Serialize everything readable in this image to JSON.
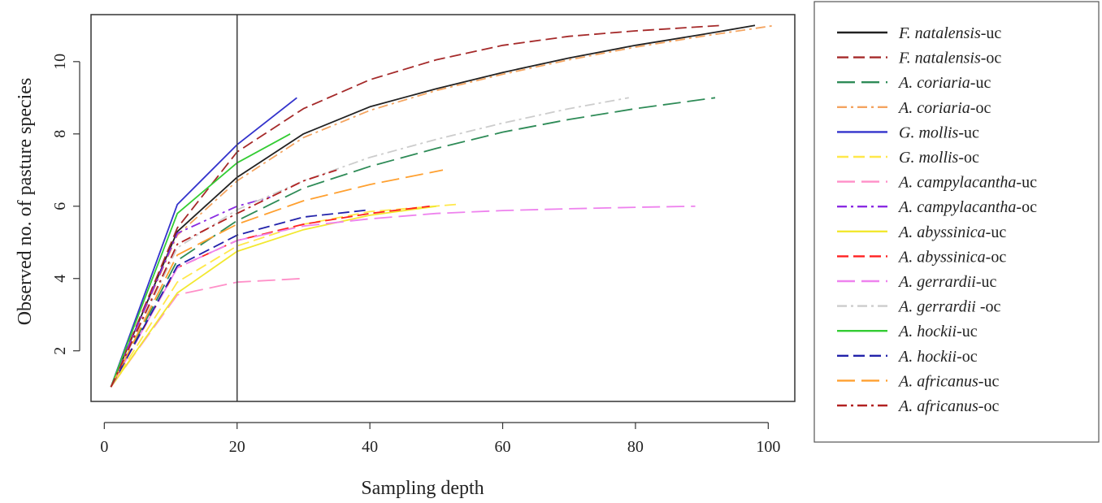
{
  "chart_data": {
    "type": "line",
    "title": "",
    "xlabel": "Sampling depth",
    "ylabel": "Observed no. of pasture species",
    "xlim": [
      -2,
      104
    ],
    "ylim": [
      0.6,
      11.3
    ],
    "xticks": [
      0,
      20,
      40,
      60,
      80,
      100
    ],
    "yticks": [
      2,
      4,
      6,
      8,
      10
    ],
    "vline_x": 20,
    "grid": false,
    "legend_position": "right",
    "series": [
      {
        "name_italic": "F. natalensis",
        "name_suffix": "-uc",
        "color": "#222222",
        "dash": "solid",
        "x": [
          1,
          11,
          20,
          30,
          40,
          50,
          60,
          70,
          80,
          90,
          98
        ],
        "y": [
          1,
          5.3,
          6.8,
          8.0,
          8.75,
          9.25,
          9.7,
          10.1,
          10.45,
          10.75,
          11.0
        ]
      },
      {
        "name_italic": "F. natalensis",
        "name_suffix": "-oc",
        "color": "#a52a2a",
        "dash": "dashed",
        "x": [
          1,
          11,
          20,
          30,
          40,
          50,
          60,
          70,
          80,
          93
        ],
        "y": [
          1,
          5.4,
          7.5,
          8.7,
          9.5,
          10.05,
          10.45,
          10.7,
          10.85,
          11.0
        ]
      },
      {
        "name_italic": "A. coriaria",
        "name_suffix": "-uc",
        "color": "#2e8b57",
        "dash": "longdash",
        "x": [
          1,
          11,
          20,
          30,
          40,
          50,
          60,
          70,
          80,
          92
        ],
        "y": [
          1,
          4.5,
          5.6,
          6.5,
          7.1,
          7.6,
          8.05,
          8.4,
          8.7,
          9.0
        ]
      },
      {
        "name_italic": "A. coriaria",
        "name_suffix": "-oc",
        "color": "#f4a460",
        "dash": "dotdash",
        "x": [
          1,
          11,
          20,
          30,
          40,
          50,
          60,
          70,
          80,
          90,
          101
        ],
        "y": [
          1,
          5.2,
          6.7,
          7.9,
          8.65,
          9.2,
          9.65,
          10.05,
          10.4,
          10.7,
          11.0
        ]
      },
      {
        "name_italic": "G. mollis",
        "name_suffix": "-uc",
        "color": "#3333cc",
        "dash": "solid",
        "x": [
          1,
          11,
          20,
          29
        ],
        "y": [
          1,
          6.05,
          7.7,
          9.0
        ]
      },
      {
        "name_italic": "G. mollis",
        "name_suffix": "-oc",
        "color": "#ffe84a",
        "dash": "dashed",
        "x": [
          1,
          11,
          20,
          30,
          40,
          53
        ],
        "y": [
          1,
          3.9,
          4.9,
          5.5,
          5.85,
          6.05
        ]
      },
      {
        "name_italic": "A. campylacantha",
        "name_suffix": "-uc",
        "color": "#ff8fc8",
        "dash": "longdash",
        "x": [
          1,
          11,
          20,
          30
        ],
        "y": [
          1,
          3.55,
          3.9,
          4.0
        ]
      },
      {
        "name_italic": "A. campylacantha",
        "name_suffix": "-oc",
        "color": "#8a2be2",
        "dash": "dotdash",
        "x": [
          1,
          11,
          20,
          25
        ],
        "y": [
          1,
          5.25,
          6.0,
          6.25
        ]
      },
      {
        "name_italic": "A. abyssinica",
        "name_suffix": "-uc",
        "color": "#f2e830",
        "dash": "solid",
        "x": [
          1,
          11,
          20,
          30,
          40,
          50
        ],
        "y": [
          1,
          3.6,
          4.75,
          5.35,
          5.75,
          6.0
        ]
      },
      {
        "name_italic": "A. abyssinica",
        "name_suffix": "-oc",
        "color": "#ff2020",
        "dash": "dashed",
        "x": [
          1,
          11,
          20,
          30,
          40,
          49
        ],
        "y": [
          1,
          4.3,
          5.05,
          5.5,
          5.8,
          6.0
        ]
      },
      {
        "name_italic": "A. gerrardii",
        "name_suffix": "-uc",
        "color": "#ee82ee",
        "dash": "longdash",
        "x": [
          1,
          11,
          20,
          30,
          40,
          50,
          60,
          70,
          80,
          89
        ],
        "y": [
          1,
          4.3,
          5.05,
          5.45,
          5.65,
          5.8,
          5.88,
          5.93,
          5.97,
          6.0
        ]
      },
      {
        "name_italic": "A. gerrardii",
        "name_suffix": " -oc",
        "color": "#cccccc",
        "dash": "dotdash",
        "x": [
          1,
          11,
          20,
          30,
          40,
          50,
          60,
          70,
          79
        ],
        "y": [
          1,
          4.85,
          5.9,
          6.7,
          7.35,
          7.85,
          8.3,
          8.7,
          9.0
        ]
      },
      {
        "name_italic": "A. hockii",
        "name_suffix": "-uc",
        "color": "#33cc33",
        "dash": "solid",
        "x": [
          1,
          11,
          20,
          28
        ],
        "y": [
          1,
          5.8,
          7.2,
          8.0
        ]
      },
      {
        "name_italic": "A. hockii",
        "name_suffix": "-oc",
        "color": "#2222aa",
        "dash": "dashed",
        "x": [
          1,
          11,
          20,
          30,
          40
        ],
        "y": [
          1,
          4.35,
          5.2,
          5.7,
          5.9
        ]
      },
      {
        "name_italic": "A. africanus",
        "name_suffix": "-uc",
        "color": "#ffa030",
        "dash": "longdash",
        "x": [
          1,
          11,
          20,
          30,
          40,
          51
        ],
        "y": [
          1,
          4.65,
          5.5,
          6.15,
          6.6,
          7.0
        ]
      },
      {
        "name_italic": "A. africanus",
        "name_suffix": "-oc",
        "color": "#b22222",
        "dash": "dotdash",
        "x": [
          1,
          11,
          20,
          30,
          35
        ],
        "y": [
          1,
          4.95,
          5.8,
          6.7,
          7.0
        ]
      }
    ]
  }
}
